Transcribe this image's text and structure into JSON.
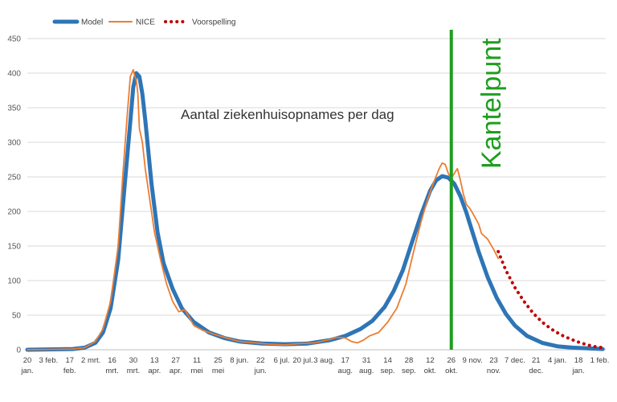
{
  "chart_data": {
    "type": "line",
    "title": "",
    "annotation": "Aantal ziekenhuisopnames per dag",
    "marker_label": "Kantelpunt",
    "marker_x": 280,
    "xlabel": "",
    "ylabel": "",
    "ylim": [
      0,
      450
    ],
    "yticks": [
      0,
      50,
      100,
      150,
      200,
      250,
      300,
      350,
      400,
      450
    ],
    "xlim": [
      0,
      382
    ],
    "grid": true,
    "legend_position": "top-left",
    "x_ticks": [
      {
        "x": 0,
        "line1": "20",
        "line2": "jan."
      },
      {
        "x": 14,
        "line1": "3 feb.",
        "line2": ""
      },
      {
        "x": 28,
        "line1": "17",
        "line2": "feb."
      },
      {
        "x": 42,
        "line1": "2 mrt.",
        "line2": ""
      },
      {
        "x": 56,
        "line1": "16",
        "line2": "mrt."
      },
      {
        "x": 70,
        "line1": "30",
        "line2": "mrt."
      },
      {
        "x": 84,
        "line1": "13",
        "line2": "apr."
      },
      {
        "x": 98,
        "line1": "27",
        "line2": "apr."
      },
      {
        "x": 112,
        "line1": "11",
        "line2": "mei"
      },
      {
        "x": 126,
        "line1": "25",
        "line2": "mei"
      },
      {
        "x": 140,
        "line1": "8 jun.",
        "line2": ""
      },
      {
        "x": 154,
        "line1": "22",
        "line2": "jun."
      },
      {
        "x": 168,
        "line1": "6 jul.",
        "line2": ""
      },
      {
        "x": 182,
        "line1": "20 jul.",
        "line2": ""
      },
      {
        "x": 196,
        "line1": "3 aug.",
        "line2": ""
      },
      {
        "x": 210,
        "line1": "17",
        "line2": "aug."
      },
      {
        "x": 224,
        "line1": "31",
        "line2": "aug."
      },
      {
        "x": 238,
        "line1": "14",
        "line2": "sep."
      },
      {
        "x": 252,
        "line1": "28",
        "line2": "sep."
      },
      {
        "x": 266,
        "line1": "12",
        "line2": "okt."
      },
      {
        "x": 280,
        "line1": "26",
        "line2": "okt."
      },
      {
        "x": 294,
        "line1": "9 nov.",
        "line2": ""
      },
      {
        "x": 308,
        "line1": "23",
        "line2": "nov."
      },
      {
        "x": 322,
        "line1": "7 dec.",
        "line2": ""
      },
      {
        "x": 336,
        "line1": "21",
        "line2": "dec."
      },
      {
        "x": 350,
        "line1": "4 jan.",
        "line2": ""
      },
      {
        "x": 364,
        "line1": "18",
        "line2": "jan."
      },
      {
        "x": 378,
        "line1": "1 feb.",
        "line2": ""
      }
    ],
    "series": [
      {
        "name": "Model",
        "color": "#2e75b6",
        "style": "solid-thick",
        "x": [
          0,
          30,
          38,
          45,
          50,
          55,
          60,
          64,
          68,
          70,
          72,
          74,
          76,
          78,
          82,
          86,
          90,
          96,
          102,
          110,
          120,
          130,
          140,
          155,
          170,
          185,
          200,
          210,
          220,
          228,
          236,
          242,
          248,
          254,
          260,
          266,
          270,
          274,
          278,
          282,
          286,
          290,
          294,
          298,
          304,
          310,
          316,
          322,
          330,
          340,
          350,
          360,
          370,
          380
        ],
        "y": [
          0,
          1,
          3,
          10,
          25,
          60,
          130,
          230,
          330,
          380,
          400,
          395,
          370,
          330,
          240,
          170,
          125,
          88,
          60,
          40,
          25,
          17,
          12,
          9,
          8,
          9,
          14,
          20,
          30,
          42,
          62,
          85,
          115,
          155,
          195,
          230,
          245,
          251,
          249,
          240,
          222,
          198,
          170,
          142,
          105,
          75,
          52,
          35,
          20,
          10,
          5,
          3,
          2,
          1
        ]
      },
      {
        "name": "NICE",
        "color": "#ed7d31",
        "style": "solid-thin",
        "x": [
          0,
          30,
          38,
          45,
          50,
          55,
          60,
          63,
          66,
          68,
          70,
          71,
          72,
          73,
          74,
          75,
          76,
          78,
          80,
          84,
          88,
          92,
          96,
          100,
          104,
          110,
          116,
          124,
          130,
          140,
          150,
          160,
          170,
          180,
          190,
          200,
          204,
          210,
          214,
          218,
          222,
          226,
          232,
          238,
          244,
          250,
          256,
          260,
          264,
          268,
          272,
          274,
          276,
          278,
          280,
          282,
          284,
          286,
          288,
          290,
          292,
          294,
          296,
          298,
          300,
          304,
          308,
          311
        ],
        "y": [
          0,
          1,
          3,
          12,
          30,
          70,
          150,
          250,
          340,
          395,
          405,
          395,
          390,
          370,
          320,
          310,
          300,
          260,
          230,
          170,
          130,
          95,
          70,
          55,
          58,
          35,
          28,
          22,
          18,
          12,
          10,
          8,
          7,
          9,
          10,
          15,
          18,
          17,
          12,
          10,
          14,
          20,
          25,
          40,
          60,
          95,
          150,
          185,
          215,
          240,
          262,
          270,
          268,
          255,
          248,
          255,
          262,
          245,
          225,
          210,
          205,
          198,
          190,
          182,
          168,
          160,
          145,
          132
        ]
      },
      {
        "name": "Voorspelling",
        "color": "#c00000",
        "style": "dotted",
        "x": [
          311,
          316,
          322,
          328,
          334,
          340,
          346,
          352,
          358,
          364,
          370,
          376,
          380
        ],
        "y": [
          142,
          115,
          90,
          70,
          53,
          40,
          30,
          22,
          16,
          11,
          7,
          4,
          3
        ]
      }
    ]
  }
}
